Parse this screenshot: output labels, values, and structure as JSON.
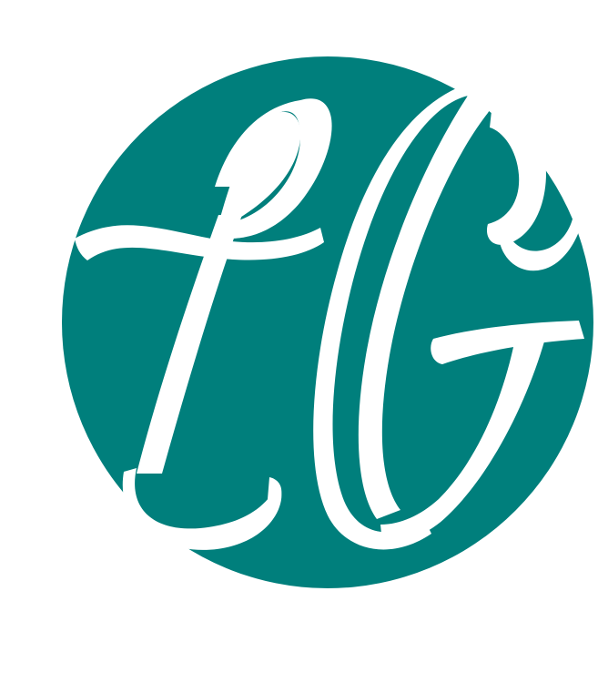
{
  "logo": {
    "monogram": "LG",
    "colors": {
      "circle": "#007f7c",
      "letters": "#ffffff",
      "background": "#ffffff"
    }
  }
}
